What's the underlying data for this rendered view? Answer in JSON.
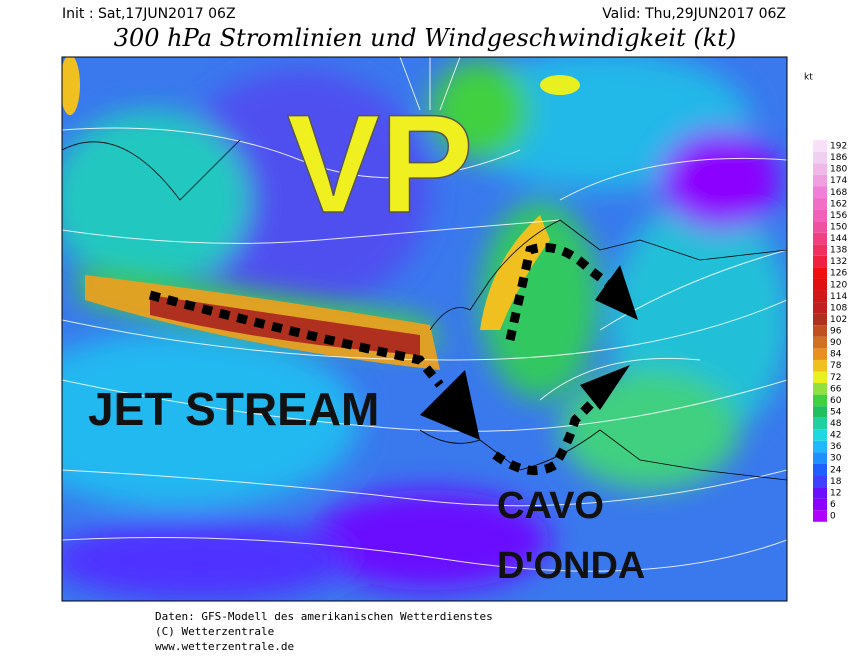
{
  "header": {
    "init": "Init : Sat,17JUN2017 06Z",
    "valid": "Valid: Thu,29JUN2017 06Z",
    "title": "300 hPa Stromlinien und Windgeschwindigkeit (kt)"
  },
  "colorbar": {
    "unit": "kt",
    "ticks": [
      0,
      6,
      12,
      18,
      24,
      30,
      36,
      42,
      48,
      54,
      60,
      66,
      72,
      78,
      84,
      90,
      96,
      102,
      108,
      114,
      120,
      126,
      132,
      138,
      144,
      150,
      156,
      162,
      168,
      174,
      180,
      186,
      192
    ],
    "colors": [
      "#b000ff",
      "#8c00ff",
      "#6a10ff",
      "#4040ff",
      "#2060ff",
      "#2090ff",
      "#20b8ff",
      "#20d8e0",
      "#20d0a0",
      "#20c060",
      "#40d040",
      "#90e040",
      "#e8f020",
      "#f0c020",
      "#e89020",
      "#d07020",
      "#c05020",
      "#b03020",
      "#c02020",
      "#d01818",
      "#e01010",
      "#f01010",
      "#f02040",
      "#f03060",
      "#f04080",
      "#f050a0",
      "#f060b8",
      "#f070c8",
      "#f080d8",
      "#f0a0e0",
      "#f0b8e8",
      "#f0d0f0",
      "#f8e0f8"
    ]
  },
  "annotations": {
    "vp": "VP",
    "jet": "JET STREAM",
    "cavo": "CAVO",
    "onda": "D'ONDA"
  },
  "footer": [
    "Daten: GFS-Modell des amerikanischen Wetterdienstes",
    "(C) Wetterzentrale",
    "www.wetterzentrale.de"
  ]
}
